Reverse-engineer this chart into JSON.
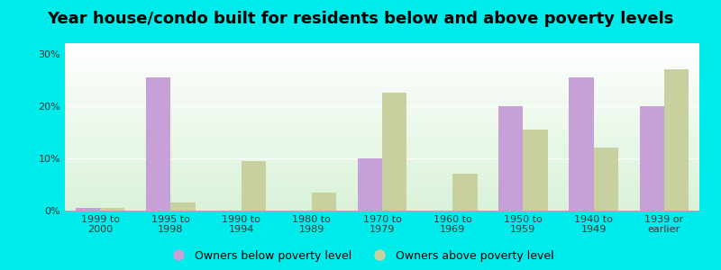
{
  "title": "Year house/condo built for residents below and above poverty levels",
  "categories": [
    "1999 to\n2000",
    "1995 to\n1998",
    "1990 to\n1994",
    "1980 to\n1989",
    "1970 to\n1979",
    "1960 to\n1969",
    "1950 to\n1959",
    "1940 to\n1949",
    "1939 or\nearlier"
  ],
  "below_poverty": [
    0.5,
    25.5,
    0,
    0,
    10.0,
    0,
    20.0,
    25.5,
    20.0
  ],
  "above_poverty": [
    0.5,
    1.5,
    9.5,
    3.5,
    22.5,
    7.0,
    15.5,
    12.0,
    27.0
  ],
  "below_color": "#c8a0d8",
  "above_color": "#c8d0a0",
  "background_color": "#00ecec",
  "yticks": [
    0,
    10,
    20,
    30
  ],
  "ylim": [
    0,
    32
  ],
  "title_fontsize": 13,
  "tick_fontsize": 8,
  "legend_fontsize": 9,
  "bar_width": 0.35,
  "legend_below_label": "Owners below poverty level",
  "legend_above_label": "Owners above poverty level"
}
